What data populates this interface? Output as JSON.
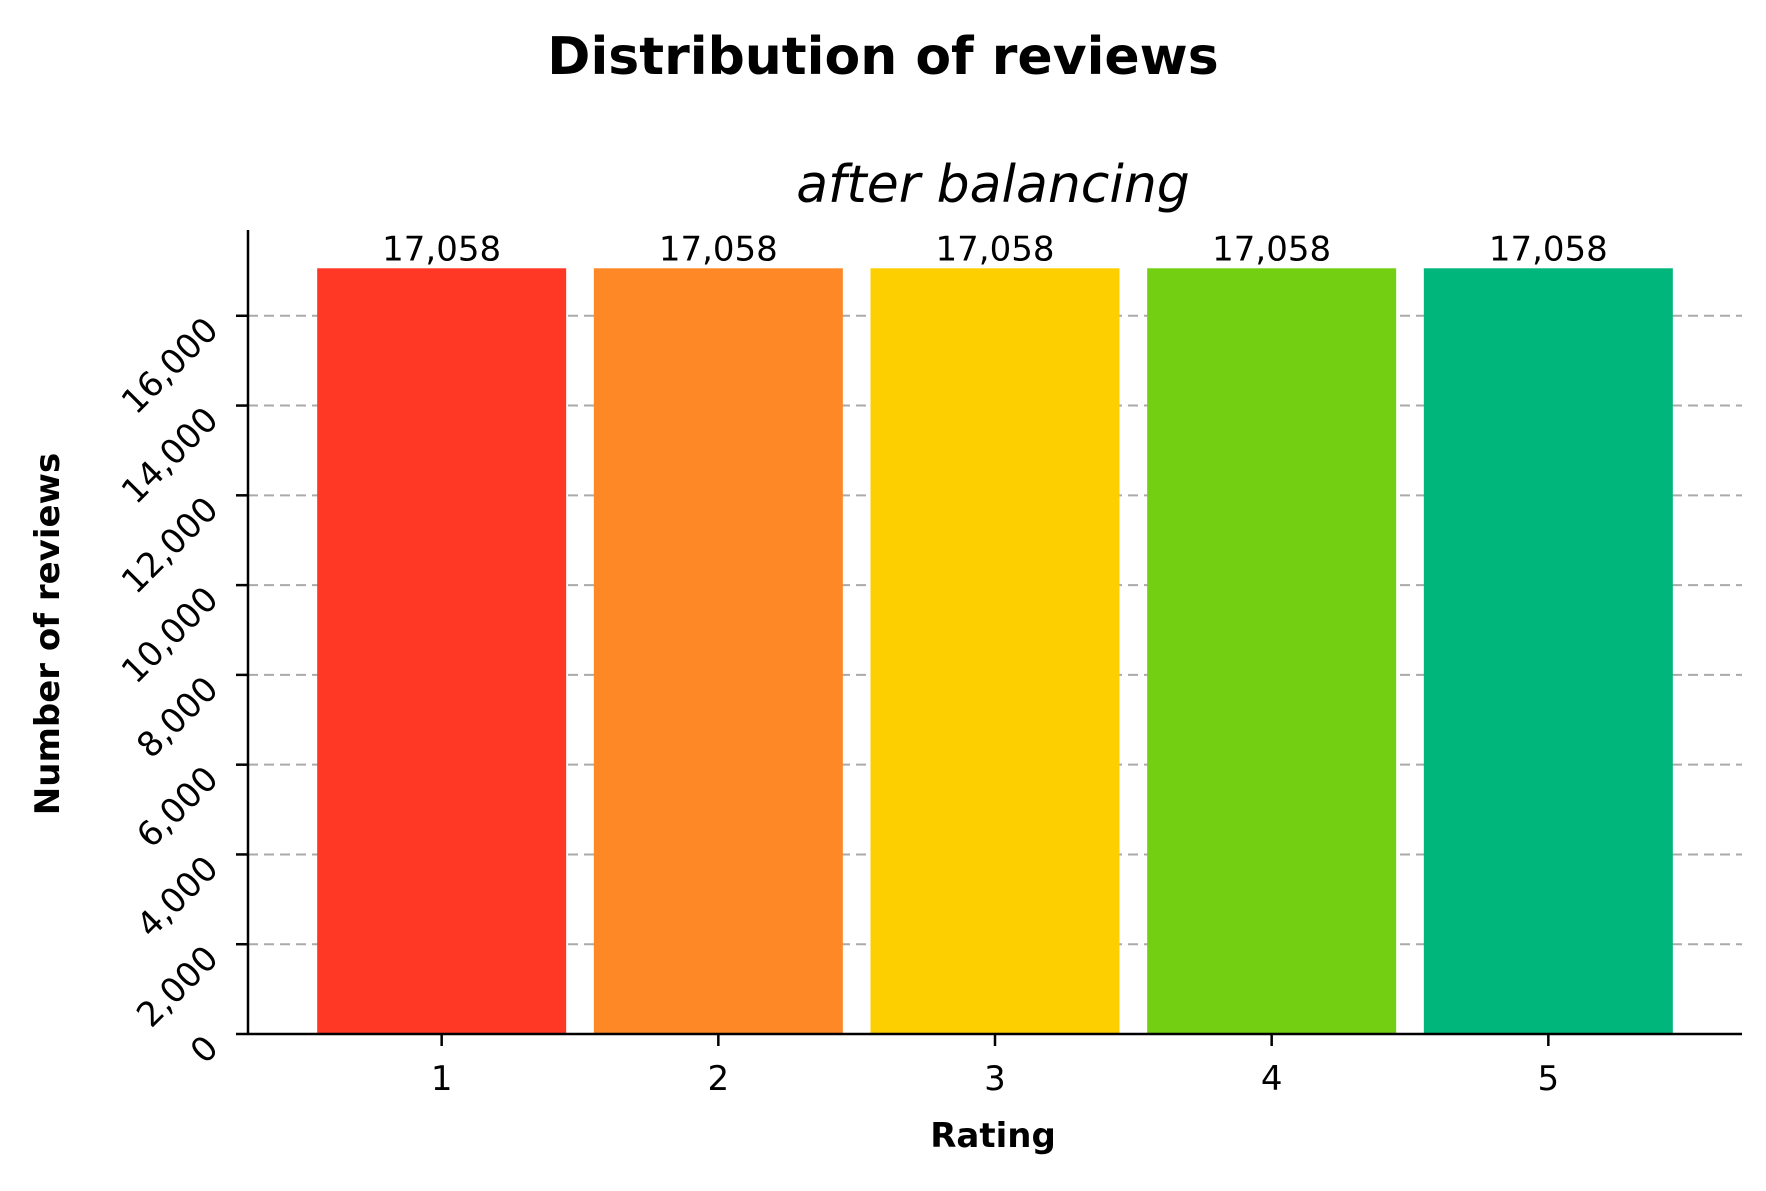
{
  "chart_data": {
    "type": "bar",
    "title": "Distribution of reviews",
    "subtitle": "after balancing",
    "xlabel": "Rating",
    "ylabel": "Number of reviews",
    "categories": [
      "1",
      "2",
      "3",
      "4",
      "5"
    ],
    "values": [
      17058,
      17058,
      17058,
      17058,
      17058
    ],
    "value_labels": [
      "17,058",
      "17,058",
      "17,058",
      "17,058",
      "17,058"
    ],
    "colors": [
      "#ff3826",
      "#ff8826",
      "#fdcf00",
      "#73cf11",
      "#00b67a"
    ],
    "ylim": [
      0,
      17911
    ],
    "yticks": [
      0,
      2000,
      4000,
      6000,
      8000,
      10000,
      12000,
      14000,
      16000
    ],
    "ytick_labels": [
      "0",
      "2,000",
      "4,000",
      "6,000",
      "8,000",
      "10,000",
      "12,000",
      "14,000",
      "16,000"
    ],
    "grid": "horizontal dashed",
    "legend": "none"
  }
}
